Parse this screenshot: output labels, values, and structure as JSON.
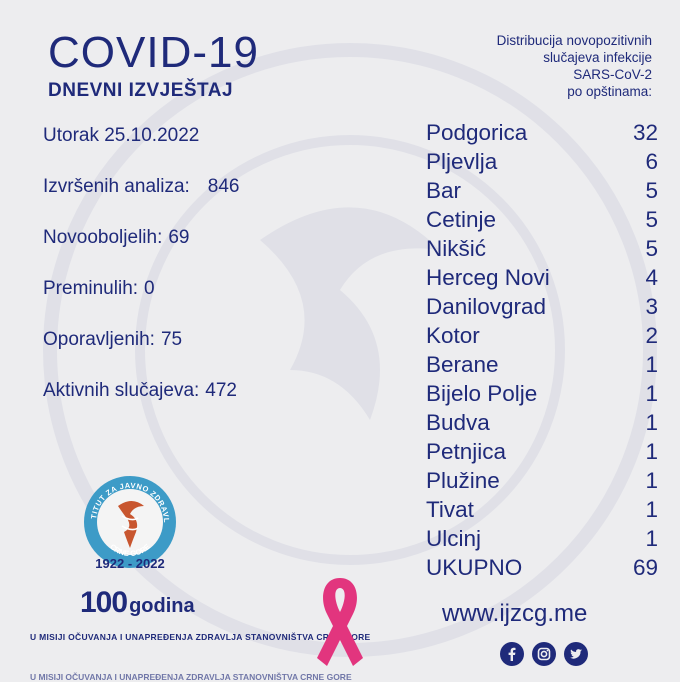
{
  "header": {
    "title": "COVID-19",
    "subtitle": "DNEVNI IZVJEŠTAJ"
  },
  "distribution_caption": [
    "Distribucija novopozitivnih",
    "slučajeva infekcije",
    "SARS-CoV-2",
    "po opštinama:"
  ],
  "stats": {
    "date": "Utorak 25.10.2022",
    "analyses_label": "Izvršenih analiza:",
    "analyses_value": "846",
    "new_cases_label": "Novooboljelih:",
    "new_cases_value": "69",
    "deaths_label": "Preminulih:",
    "deaths_value": "0",
    "recovered_label": "Oporavljenih:",
    "recovered_value": "75",
    "active_label": "Aktivnih slučajeva:",
    "active_value": "472"
  },
  "municipalities": [
    {
      "name": "Podgorica",
      "count": "32"
    },
    {
      "name": "Pljevlja",
      "count": "6"
    },
    {
      "name": "Bar",
      "count": "5"
    },
    {
      "name": "Cetinje",
      "count": "5"
    },
    {
      "name": "Nikšić",
      "count": "5"
    },
    {
      "name": "Herceg Novi",
      "count": "4"
    },
    {
      "name": "Danilovgrad",
      "count": "3"
    },
    {
      "name": "Kotor",
      "count": "2"
    },
    {
      "name": "Berane",
      "count": "1"
    },
    {
      "name": "Bijelo Polje",
      "count": "1"
    },
    {
      "name": "Budva",
      "count": "1"
    },
    {
      "name": "Petnjica",
      "count": "1"
    },
    {
      "name": "Plužine",
      "count": "1"
    },
    {
      "name": "Tivat",
      "count": "1"
    },
    {
      "name": "Ulcinj",
      "count": "1"
    },
    {
      "name": "UKUPNO",
      "count": "69"
    }
  ],
  "footer": {
    "emblem_top_text": "INSTITUT ZA JAVNO ZDRAVLJE",
    "emblem_bottom_text": "CRNE GORE",
    "emblem_years": "1922 - 2022",
    "anniversary_number": "100",
    "anniversary_word": "godina",
    "mission": "U MISIJI OČUVANJA I UNAPREĐENJA ZDRAVLJA STANOVNIŠTVA CRNE GORE",
    "website": "www.ijzcg.me"
  },
  "social_icons": [
    "facebook-icon",
    "instagram-icon",
    "twitter-icon"
  ],
  "colors": {
    "background": "#ededef",
    "text": "#1f2a7a",
    "ribbon": "#e2357e",
    "emblem_ring": "#3d9bc7",
    "emblem_accent": "#c8562f"
  }
}
